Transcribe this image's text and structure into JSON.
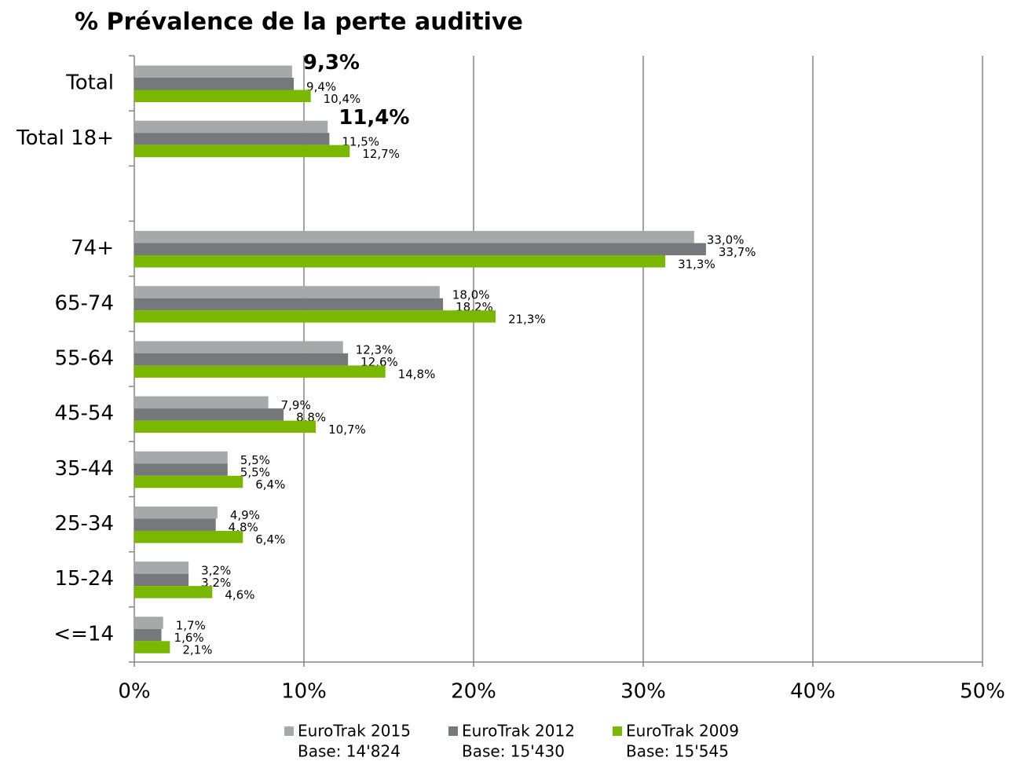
{
  "chart_data": {
    "type": "hbar",
    "title": "% Prévalence de la perte auditive",
    "categories": [
      "Total",
      "Total 18+",
      null,
      "74+",
      "65-74",
      "55-64",
      "45-54",
      "35-44",
      "25-34",
      "15-24",
      "<=14"
    ],
    "series": [
      {
        "name": "EuroTrak 2015",
        "base": "Base: 14'824",
        "color": "#a6a8a9",
        "values": [
          9.3,
          11.4,
          null,
          33.0,
          18.0,
          12.3,
          7.9,
          5.5,
          4.9,
          3.2,
          1.7
        ],
        "value_labels": [
          "9,3%",
          "11,4%",
          null,
          "33,0%",
          "18,0%",
          "12,3%",
          "7,9%",
          "5,5%",
          "4,9%",
          "3,2%",
          "1,7%"
        ]
      },
      {
        "name": "EuroTrak 2012",
        "base": "Base: 15'430",
        "color": "#75797c",
        "values": [
          9.4,
          11.5,
          null,
          33.7,
          18.2,
          12.6,
          8.8,
          5.5,
          4.8,
          3.2,
          1.6
        ],
        "value_labels": [
          "9,4%",
          "11,5%",
          null,
          "33,7%",
          "18,2%",
          "12,6%",
          "8,8%",
          "5,5%",
          "4,8%",
          "3,2%",
          "1,6%"
        ]
      },
      {
        "name": "EuroTrak 2009",
        "base": "Base: 15'545",
        "color": "#7ab800",
        "values": [
          10.4,
          12.7,
          null,
          31.3,
          21.3,
          14.8,
          10.7,
          6.4,
          6.4,
          4.6,
          2.1
        ],
        "value_labels": [
          "10,4%",
          "12,7%",
          null,
          "31,3%",
          "21,3%",
          "14,8%",
          "10,7%",
          "6,4%",
          "6,4%",
          "4,6%",
          "2,1%"
        ]
      }
    ],
    "xlim": [
      0,
      50
    ],
    "xticks": [
      {
        "value": 0,
        "label": "0%"
      },
      {
        "value": 10,
        "label": "10%"
      },
      {
        "value": 20,
        "label": "20%"
      },
      {
        "value": 30,
        "label": "30%"
      },
      {
        "value": 40,
        "label": "40%"
      },
      {
        "value": 50,
        "label": "50%"
      }
    ],
    "grid": true,
    "legend": "bottom"
  }
}
